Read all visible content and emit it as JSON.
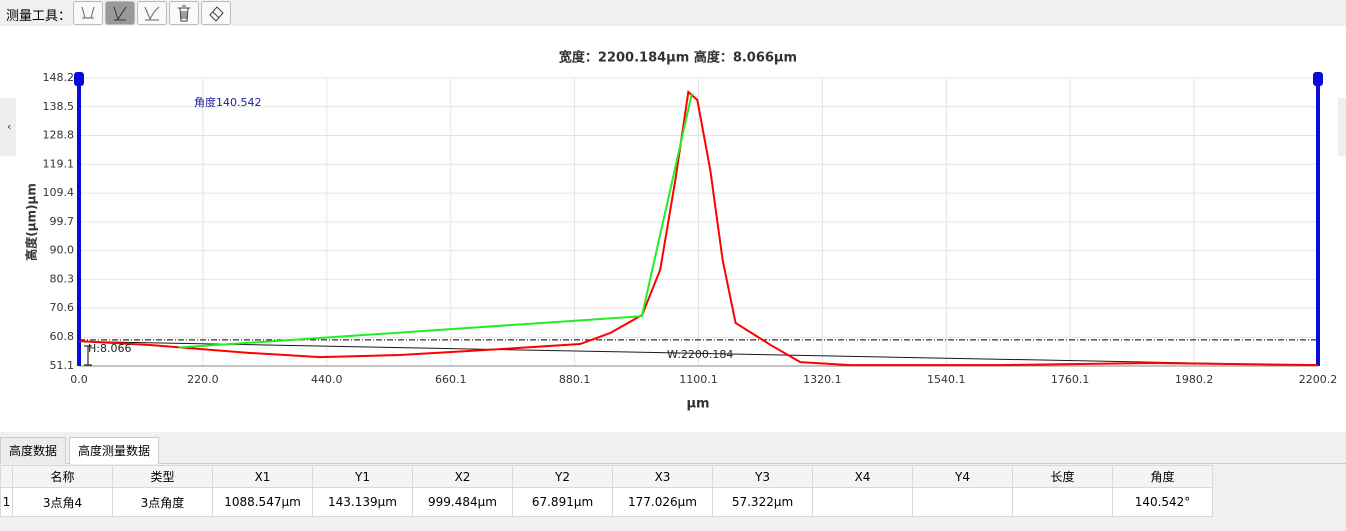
{
  "toolbar": {
    "label": "测量工具："
  },
  "chart_data": {
    "type": "line",
    "title": "宽度：2200.184μm 高度：8.066μm",
    "xlabel": "μm",
    "ylabel": "高度(μm)μm",
    "xlim": [
      0,
      2200.2
    ],
    "ylim": [
      51.1,
      148.2
    ],
    "xticks": [
      {
        "value": 0,
        "label": "0.0"
      },
      {
        "value": 220,
        "label": "220.0"
      },
      {
        "value": 440,
        "label": "440.0"
      },
      660.1,
      880.1,
      1100.1,
      1320.1,
      1540.1,
      1760.1,
      1980.2,
      2200.2
    ],
    "yticks": [
      51.1,
      60.8,
      70.6,
      80.3,
      {
        "value": 90,
        "label": "90.0"
      },
      99.7,
      109.4,
      119.1,
      128.8,
      138.5,
      148.2
    ],
    "grid": true,
    "cursors": [
      0,
      2200.2
    ],
    "series": [
      {
        "color": "#000000",
        "dash": "6 2 1 2",
        "x": [
          0,
          2200.2
        ],
        "values": [
          59.9,
          59.9
        ]
      },
      {
        "color": "#1a1a1a",
        "x": [
          0,
          2200.2
        ],
        "values": [
          59.4,
          51.3
        ]
      },
      {
        "color": "#ff0000",
        "x": [
          0,
          126,
          304,
          428,
          570,
          748,
          890,
          943,
          1000,
          1032,
          1059,
          1082,
          1098,
          1121,
          1143,
          1166,
          1228,
          1281,
          1370,
          1636,
          1902,
          2200
        ],
        "values": [
          59.5,
          58.2,
          55.5,
          54.1,
          54.8,
          56.8,
          58.5,
          62.2,
          68.3,
          83.5,
          113.8,
          143.5,
          140.8,
          117.2,
          86.8,
          65.6,
          58.2,
          52.4,
          51.4,
          51.4,
          52.1,
          51.4
        ]
      },
      {
        "color": "#22ee22",
        "x": [
          177.026,
          999.484,
          1088.547
        ],
        "values": [
          57.322,
          67.891,
          143.139
        ]
      }
    ],
    "annotations": [
      "角度140.542",
      "H:8.066",
      "W:2200.184"
    ]
  },
  "tabs": {
    "items": [
      "高度数据",
      "高度测量数据"
    ],
    "active": 1
  },
  "table": {
    "headers": [
      "名称",
      "类型",
      "X1",
      "Y1",
      "X2",
      "Y2",
      "X3",
      "Y3",
      "X4",
      "Y4",
      "长度",
      "角度"
    ],
    "row_numbers": [
      "1"
    ],
    "rows": [
      [
        "3点角4",
        "3点角度",
        "1088.547μm",
        "143.139μm",
        "999.484μm",
        "67.891μm",
        "177.026μm",
        "57.322μm",
        null,
        null,
        null,
        "140.542°"
      ]
    ]
  }
}
